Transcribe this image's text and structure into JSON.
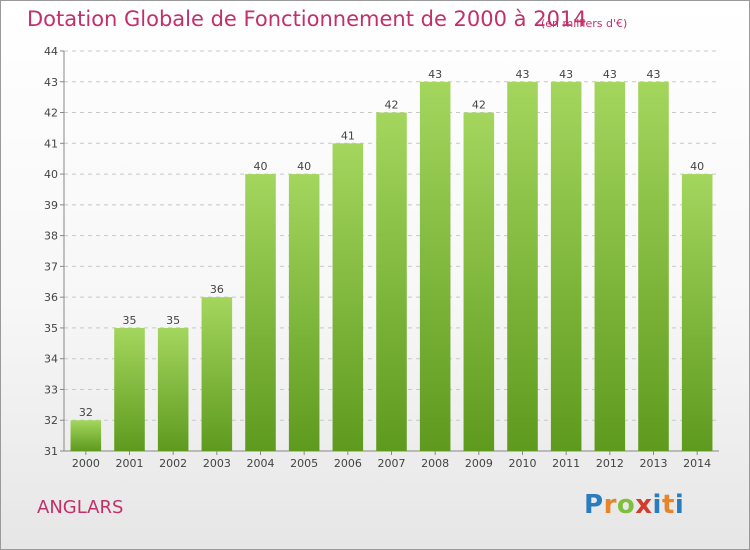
{
  "header": {
    "title": "Dotation Globale de Fonctionnement de 2000 à 2014",
    "subtitle": "(en milliers d'€)"
  },
  "footer": {
    "commune": "ANGLARS",
    "logo_letters": [
      "P",
      "r",
      "o",
      "x",
      "i",
      "t",
      "i"
    ],
    "logo_colors": [
      "#2b7bbf",
      "#e8842a",
      "#7fbf3f",
      "#d23c2c",
      "#2b7bbf",
      "#e8842a",
      "#2b7bbf"
    ]
  },
  "colors": {
    "accent": "#c1306b",
    "bar_top": "#a4d65e",
    "bar_bottom": "#5e9a1e"
  },
  "chart_data": {
    "type": "bar",
    "categories": [
      "2000",
      "2001",
      "2002",
      "2003",
      "2004",
      "2005",
      "2006",
      "2007",
      "2008",
      "2009",
      "2010",
      "2011",
      "2012",
      "2013",
      "2014"
    ],
    "values": [
      32,
      35,
      35,
      36,
      40,
      40,
      41,
      42,
      43,
      42,
      43,
      43,
      43,
      43,
      40
    ],
    "ylim": [
      31,
      44
    ],
    "yticks": [
      31,
      32,
      33,
      34,
      35,
      36,
      37,
      38,
      39,
      40,
      41,
      42,
      43,
      44
    ],
    "grid": true,
    "data_labels": true
  }
}
